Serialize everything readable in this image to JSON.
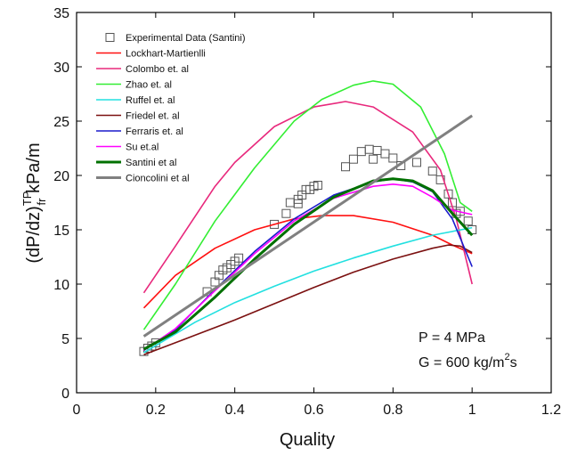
{
  "chart_data": {
    "type": "line",
    "xlabel": "Quality",
    "ylabel": {
      "main": "(dP/dz)",
      "sup": "TP",
      "sub": "fr",
      "unit": " kPa/m"
    },
    "annotations": [
      {
        "text": "P = 4 MPa"
      },
      {
        "text": "G = 600 kg/m",
        "sup": "2",
        "tail": "s"
      }
    ],
    "xlim": [
      0,
      1.2
    ],
    "xticks": [
      0,
      0.2,
      0.4,
      0.6,
      0.8,
      1,
      1.2
    ],
    "ylim": [
      0,
      35
    ],
    "yticks": [
      0,
      5,
      10,
      15,
      20,
      25,
      30,
      35
    ],
    "legend": "upper left",
    "series": [
      {
        "name": "Experimental Data (Santini)",
        "kind": "scatter",
        "color": "#555555",
        "x": [
          0.17,
          0.18,
          0.19,
          0.2,
          0.33,
          0.35,
          0.36,
          0.37,
          0.38,
          0.39,
          0.4,
          0.41,
          0.5,
          0.53,
          0.54,
          0.56,
          0.56,
          0.57,
          0.58,
          0.59,
          0.6,
          0.61,
          0.68,
          0.7,
          0.72,
          0.74,
          0.75,
          0.76,
          0.78,
          0.8,
          0.82,
          0.86,
          0.9,
          0.92,
          0.94,
          0.95,
          0.96,
          0.97,
          0.99,
          1.0
        ],
        "values": [
          3.8,
          4.1,
          4.3,
          4.6,
          9.3,
          10.2,
          10.8,
          11.3,
          11.5,
          11.8,
          12.1,
          12.4,
          15.5,
          16.5,
          17.5,
          17.8,
          17.4,
          18.2,
          18.7,
          18.7,
          19.0,
          19.1,
          20.8,
          21.5,
          22.2,
          22.4,
          21.5,
          22.3,
          22.0,
          21.6,
          20.9,
          21.2,
          20.4,
          19.6,
          18.3,
          17.5,
          16.5,
          16.7,
          15.8,
          15.0
        ]
      },
      {
        "name": "Lockhart-Martienlli",
        "color": "#ff1010",
        "x": [
          0.17,
          0.25,
          0.35,
          0.45,
          0.55,
          0.62,
          0.7,
          0.8,
          0.9,
          0.95,
          1.0
        ],
        "values": [
          7.8,
          10.8,
          13.3,
          15,
          16,
          16.3,
          16.3,
          15.7,
          14.5,
          13.6,
          12.8
        ]
      },
      {
        "name": "Colombo et. al",
        "color": "#e8287c",
        "x": [
          0.17,
          0.25,
          0.35,
          0.4,
          0.5,
          0.6,
          0.68,
          0.75,
          0.85,
          0.92,
          0.96,
          1.0
        ],
        "values": [
          9.2,
          13.5,
          19,
          21.2,
          24.5,
          26.3,
          26.8,
          26.3,
          24,
          20.5,
          16,
          10
        ]
      },
      {
        "name": "Zhao et. al",
        "color": "#33ee33",
        "x": [
          0.17,
          0.25,
          0.35,
          0.45,
          0.55,
          0.62,
          0.7,
          0.75,
          0.8,
          0.87,
          0.93,
          0.97,
          1.0
        ],
        "values": [
          5.8,
          10,
          15.8,
          20.7,
          25,
          27,
          28.3,
          28.7,
          28.4,
          26.3,
          22,
          17.5,
          16.7
        ]
      },
      {
        "name": "Ruffel et. al",
        "color": "#22e0e0",
        "x": [
          0.17,
          0.3,
          0.4,
          0.5,
          0.6,
          0.7,
          0.8,
          0.9,
          1.0
        ],
        "values": [
          3.7,
          6.5,
          8.3,
          9.8,
          11.2,
          12.4,
          13.5,
          14.5,
          15.2
        ]
      },
      {
        "name": "Friedel et. al",
        "color": "#7b1010",
        "x": [
          0.17,
          0.3,
          0.4,
          0.5,
          0.6,
          0.7,
          0.8,
          0.9,
          0.94,
          0.97,
          1.0
        ],
        "values": [
          3.5,
          5.3,
          6.7,
          8.2,
          9.7,
          11.1,
          12.3,
          13.3,
          13.6,
          13.5,
          12.9
        ]
      },
      {
        "name": "Ferraris et. al",
        "color": "#1a1acc",
        "x": [
          0.17,
          0.25,
          0.35,
          0.45,
          0.55,
          0.65,
          0.75,
          0.8,
          0.85,
          0.9,
          0.95,
          1.0
        ],
        "values": [
          3.9,
          5.8,
          9.5,
          13,
          16,
          18.2,
          19.4,
          19.7,
          19.4,
          18.5,
          16,
          11.6
        ]
      },
      {
        "name": "Su et.al",
        "color": "#ff00ff",
        "x": [
          0.17,
          0.25,
          0.35,
          0.45,
          0.55,
          0.65,
          0.75,
          0.8,
          0.85,
          0.9,
          0.95,
          1.0
        ],
        "values": [
          3.9,
          5.9,
          9.4,
          12.8,
          15.8,
          17.9,
          19,
          19.2,
          19,
          18,
          16.8,
          16.4
        ]
      },
      {
        "name": "Santini et al",
        "color": "#007000",
        "width": 3,
        "x": [
          0.17,
          0.25,
          0.35,
          0.45,
          0.55,
          0.65,
          0.75,
          0.8,
          0.85,
          0.9,
          0.95,
          1.0
        ],
        "values": [
          4,
          5.6,
          8.8,
          12.3,
          15.5,
          18,
          19.5,
          19.7,
          19.5,
          18.6,
          16.5,
          14.5
        ]
      },
      {
        "name": "Cioncolini et al",
        "color": "#808080",
        "width": 3,
        "x": [
          0.17,
          1.0
        ],
        "values": [
          5.2,
          25.5
        ]
      }
    ]
  }
}
